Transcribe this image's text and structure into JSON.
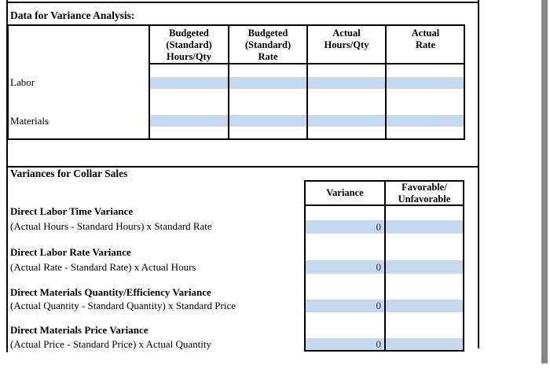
{
  "theme": {
    "highlight_fill": "#c6d8ee",
    "border_color": "#000000",
    "scrollbar_color": "#878787",
    "value_text_color": "#1c2b4a"
  },
  "section_data": {
    "heading": "Data for Variance Analysis:",
    "table": {
      "col_headers": [
        {
          "line1": "Budgeted",
          "line2": "(Standard)",
          "line3": "Hours/Qty"
        },
        {
          "line1": "Budgeted",
          "line2": "(Standard)",
          "line3": "Rate"
        },
        {
          "line1": "Actual",
          "line2": "Hours/Qty",
          "line3": ""
        },
        {
          "line1": "Actual",
          "line2": "Rate",
          "line3": ""
        }
      ],
      "row_labels": [
        "Labor",
        "Materials"
      ],
      "cells": {
        "labor": {
          "budgeted_hours": "",
          "budgeted_rate": "",
          "actual_hours": "",
          "actual_rate": ""
        },
        "materials": {
          "budgeted_hours": "",
          "budgeted_rate": "",
          "actual_hours": "",
          "actual_rate": ""
        }
      }
    }
  },
  "section_variances": {
    "heading": "Variances for Collar Sales",
    "table": {
      "col1_header": "Variance",
      "col2_header_line1": "Favorable/",
      "col2_header_line2": "Unfavorable"
    },
    "rows": [
      {
        "title": "Direct Labor Time Variance",
        "formula": "(Actual Hours - Standard Hours) x Standard Rate",
        "variance": "0",
        "favorable": ""
      },
      {
        "title": "Direct Labor Rate Variance",
        "formula": "(Actual Rate - Standard Rate) x Actual Hours",
        "variance": "0",
        "favorable": ""
      },
      {
        "title": "Direct Materials Quantity/Efficiency Variance",
        "formula": "(Actual Quantity - Standard Quantity) x Standard Price",
        "variance": "0",
        "favorable": ""
      },
      {
        "title": "Direct Materials Price Variance",
        "formula": "(Actual Price - Standard Price) x Actual Quantity",
        "variance": "0",
        "favorable": ""
      }
    ]
  }
}
